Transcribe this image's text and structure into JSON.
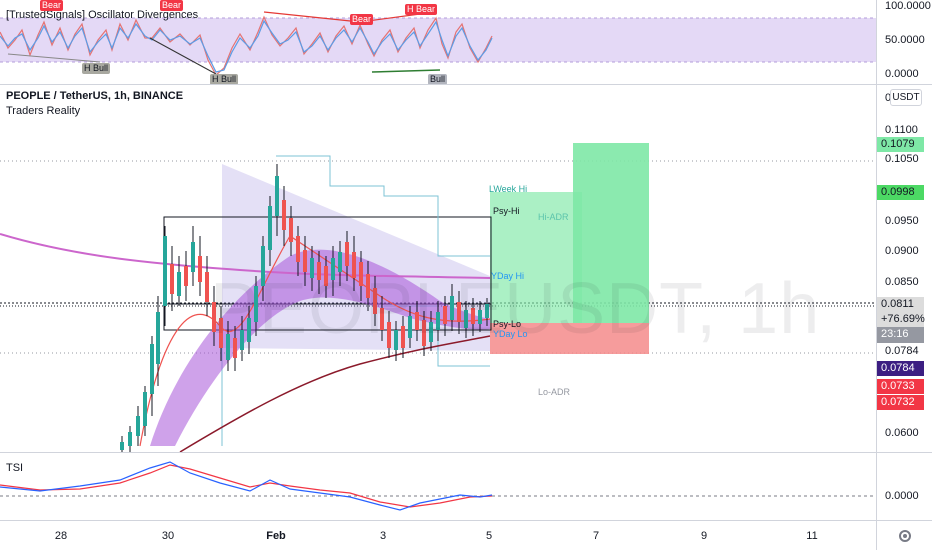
{
  "osc": {
    "title": "[TrustedSignals] Oscillator Divergences",
    "axis": [
      "100.0000",
      "50.0000",
      "0.0000"
    ],
    "signals": [
      {
        "label": "Bear",
        "type": "bear"
      },
      {
        "label": "Bear",
        "type": "bear"
      },
      {
        "label": "Bear",
        "type": "bear"
      },
      {
        "label": "H Bear",
        "type": "bear"
      },
      {
        "label": "H Bull",
        "type": "hbull"
      },
      {
        "label": "H Bull",
        "type": "hbull"
      },
      {
        "label": "Bull",
        "type": "bull"
      }
    ]
  },
  "main": {
    "symbol_line": "PEOPLE / TetherUS, 1h, BINANCE",
    "indicator": "Traders Reality",
    "watermark": "PEOPLEUSDT, 1h",
    "currency_button": "USDT",
    "axis": [
      "0.1100",
      "0.1050",
      "0.0950",
      "0.0900",
      "0.0850",
      "0.0784",
      "0.0600"
    ],
    "axis_top_zero": "0",
    "price_tags": {
      "green1": "0.1079",
      "green2": "0.0998",
      "current": "0.0811",
      "change": "+76.69%",
      "countdown": "23:16",
      "purple": "0.0784",
      "red1": "0.0733",
      "red2": "0.0732"
    },
    "level_labels": {
      "lweek_hi": "LWeek Hi",
      "psy_hi": "Psy-Hi",
      "hi_adr": "Hi-ADR",
      "yday_hi": "YDay Hi",
      "psy_lo": "Psy-Lo",
      "day_lo": "YDay Lo",
      "lo_adr": "Lo-ADR"
    },
    "colors": {
      "up": "#26a69a",
      "down": "#ef5350",
      "profit_zone": "#7ee8a6",
      "loss_zone": "#f48b8b",
      "magenta_ma": "#cc66cc",
      "dark_red_ma": "#8b1a2b"
    }
  },
  "tsi": {
    "title": "TSI",
    "axis": [
      "0.0000"
    ]
  },
  "xaxis": {
    "labels": [
      "28",
      "30",
      "Feb",
      "3",
      "5",
      "7",
      "9",
      "11"
    ]
  },
  "icons": {
    "settings": "gear-icon"
  }
}
